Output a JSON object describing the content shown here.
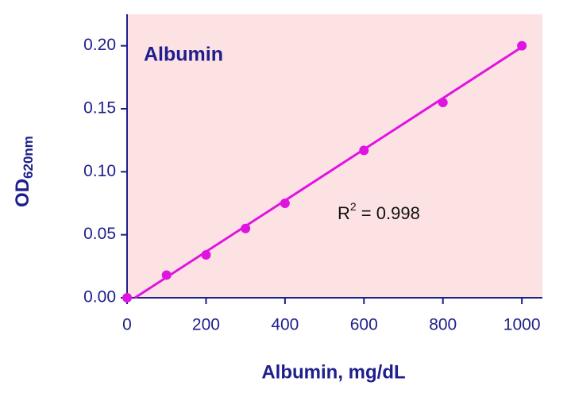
{
  "chart_data": {
    "type": "scatter",
    "title": "Albumin",
    "x_label": "Albumin, mg/dL",
    "y_label": "OD",
    "y_label_subscript": "620nm",
    "annotation": "R",
    "annotation_superscript": "2",
    "annotation_rest": " = 0.998",
    "background": "#fde2e4",
    "axis_color": "#1e1e8c",
    "series": [
      {
        "style": "points",
        "color": "#e014e0",
        "x": [
          0,
          100,
          200,
          300,
          400,
          600,
          800,
          1000
        ],
        "values": [
          0,
          0.018,
          0.034,
          0.055,
          0.075,
          0.117,
          0.155,
          0.2
        ]
      },
      {
        "style": "line",
        "color": "#e014e0",
        "x": [
          20,
          1000
        ],
        "values": [
          0,
          0.199
        ]
      }
    ],
    "xlim": [
      0,
      1052
    ],
    "xticks": [
      0,
      200,
      400,
      600,
      800,
      1000
    ],
    "ylim": [
      0,
      0.225
    ],
    "yticks": [
      {
        "value": 0,
        "label": "0.00"
      },
      {
        "value": 0.05,
        "label": "0.05"
      },
      {
        "value": 0.1,
        "label": "0.10"
      },
      {
        "value": 0.15,
        "label": "0.15"
      },
      {
        "value": 0.2,
        "label": "0.20"
      }
    ]
  }
}
